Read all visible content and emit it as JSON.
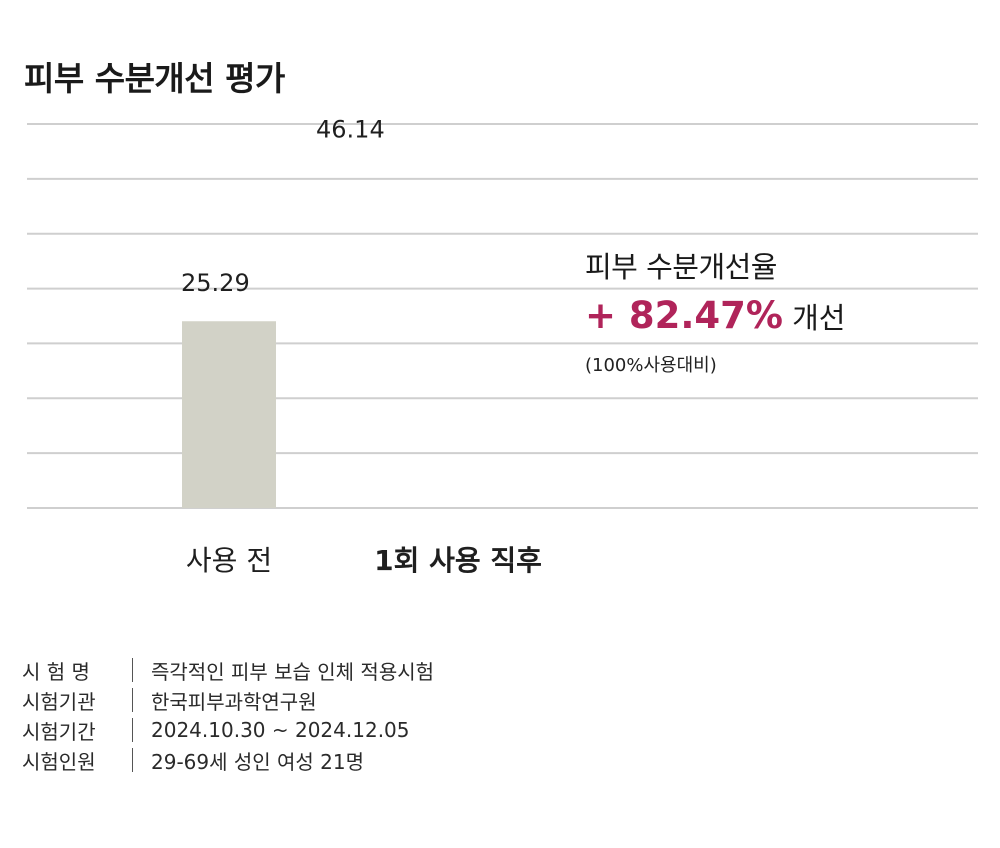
{
  "page": {
    "title": "피부 수분개선 평가"
  },
  "colors": {
    "accent": "#b0245a",
    "bar_before": "#d2d2c7",
    "grid": "#cfcfcf"
  },
  "chart_data": {
    "type": "bar",
    "categories": [
      "사용 전",
      "1회 사용 직후"
    ],
    "values": [
      25.29,
      46.14
    ],
    "value_labels": [
      "25.29",
      "46.14"
    ],
    "ylim": [
      0,
      52
    ],
    "grid": true
  },
  "callout": {
    "title": "피부 수분개선율",
    "percent": "+ 82.47%",
    "suffix": "개선",
    "note": "(100%사용대비)"
  },
  "info": [
    {
      "key": "시 험 명",
      "value": "즉각적인 피부 보습 인체 적용시험"
    },
    {
      "key": "시험기관",
      "value": "한국피부과학연구원"
    },
    {
      "key": "시험기간",
      "value": "2024.10.30 ~ 2024.12.05"
    },
    {
      "key": "시험인원",
      "value": "29-69세 성인 여성 21명"
    }
  ]
}
